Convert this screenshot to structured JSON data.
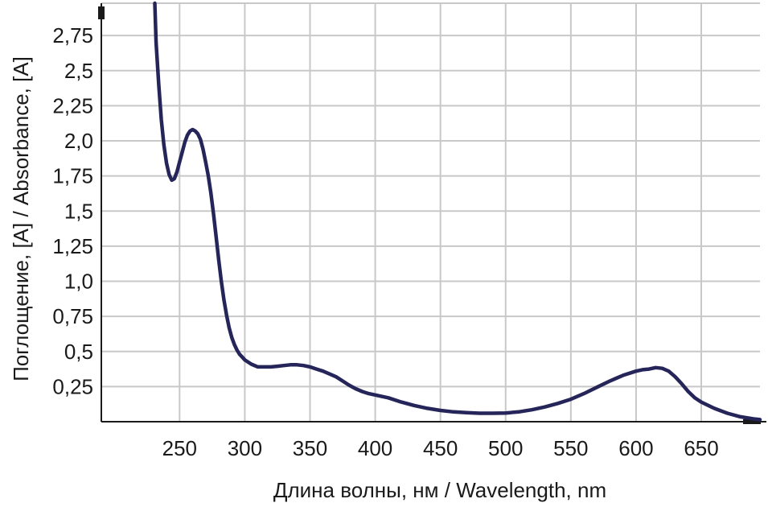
{
  "chart_data": {
    "type": "line",
    "title": "",
    "xlabel": "Длина волны, нм / Wavelength, nm",
    "ylabel": "Поглощение, [A] / Absorbance, [A]",
    "xlim": [
      190,
      695
    ],
    "ylim": [
      0,
      2.98
    ],
    "x_ticks": [
      250,
      300,
      350,
      400,
      450,
      500,
      550,
      600,
      650
    ],
    "x_tick_labels": [
      "250",
      "300",
      "350",
      "400",
      "450",
      "500",
      "550",
      "600",
      "650"
    ],
    "y_ticks": [
      0.25,
      0.5,
      0.75,
      1.0,
      1.25,
      1.5,
      1.75,
      2.0,
      2.25,
      2.5,
      2.75
    ],
    "y_tick_labels": [
      "0,25",
      "0,5",
      "0,75",
      "1,0",
      "1,25",
      "1,5",
      "1,75",
      "2,0",
      "2,25",
      "2,5",
      "2,75"
    ],
    "grid": true,
    "line_color": "#25255a",
    "series": [
      {
        "x": [
          231,
          232,
          234,
          236,
          238,
          240,
          242,
          244,
          246,
          248,
          250,
          252,
          254,
          256,
          258,
          260,
          262,
          264,
          266,
          268,
          270,
          272,
          274,
          276,
          278,
          280,
          282,
          284,
          286,
          288,
          290,
          292,
          294,
          296,
          298,
          300,
          305,
          310,
          315,
          320,
          325,
          330,
          335,
          340,
          345,
          350,
          355,
          360,
          365,
          370,
          375,
          380,
          385,
          390,
          395,
          400,
          410,
          420,
          430,
          440,
          450,
          460,
          470,
          480,
          490,
          500,
          510,
          520,
          530,
          540,
          550,
          560,
          570,
          580,
          590,
          600,
          605,
          610,
          615,
          620,
          625,
          630,
          635,
          640,
          645,
          650,
          660,
          670,
          680,
          690,
          695
        ],
        "y": [
          2.98,
          2.7,
          2.4,
          2.15,
          1.97,
          1.84,
          1.76,
          1.72,
          1.73,
          1.78,
          1.85,
          1.92,
          1.99,
          2.04,
          2.07,
          2.08,
          2.07,
          2.05,
          2.01,
          1.94,
          1.85,
          1.75,
          1.63,
          1.48,
          1.32,
          1.15,
          1.0,
          0.87,
          0.76,
          0.67,
          0.6,
          0.55,
          0.51,
          0.48,
          0.46,
          0.44,
          0.41,
          0.39,
          0.39,
          0.39,
          0.395,
          0.4,
          0.405,
          0.405,
          0.4,
          0.39,
          0.375,
          0.36,
          0.34,
          0.32,
          0.29,
          0.26,
          0.235,
          0.215,
          0.2,
          0.19,
          0.17,
          0.14,
          0.115,
          0.095,
          0.08,
          0.07,
          0.065,
          0.06,
          0.06,
          0.062,
          0.07,
          0.085,
          0.105,
          0.13,
          0.16,
          0.2,
          0.245,
          0.29,
          0.33,
          0.36,
          0.37,
          0.375,
          0.385,
          0.38,
          0.36,
          0.32,
          0.27,
          0.215,
          0.17,
          0.14,
          0.095,
          0.06,
          0.035,
          0.02,
          0.015
        ]
      }
    ]
  }
}
